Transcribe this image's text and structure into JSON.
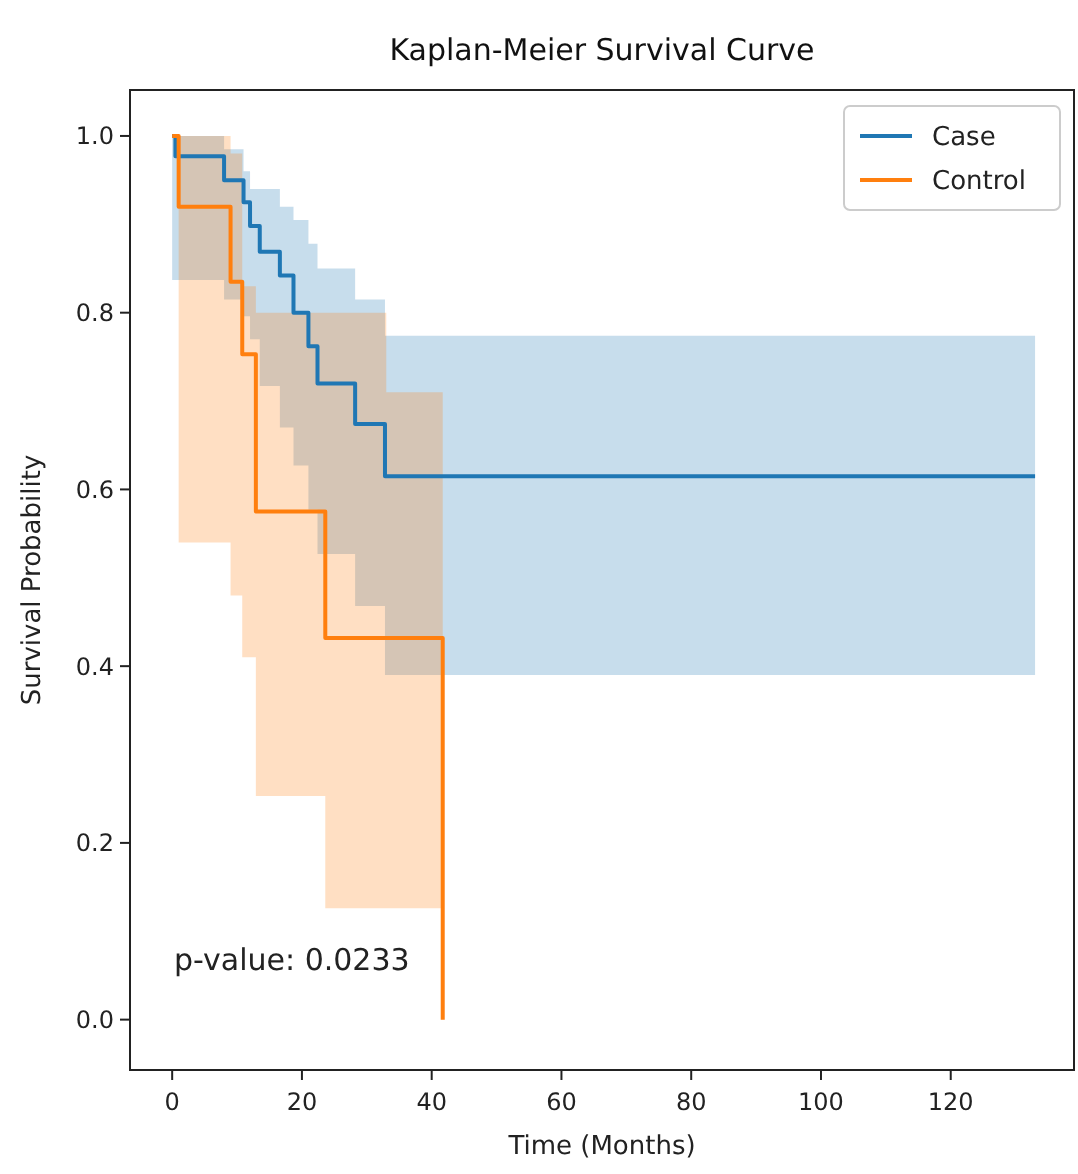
{
  "chart_data": {
    "type": "step",
    "title": "Kaplan-Meier Survival Curve",
    "xlabel": "Time (Months)",
    "ylabel": "Survival Probability",
    "annotations": [
      "p-value: 0.0233"
    ],
    "series": [
      {
        "name": "Case",
        "color": "#1f77b4",
        "x": [
          0,
          0.5,
          8,
          11,
          12,
          13.5,
          16.6,
          18.7,
          21,
          22.4,
          28.2,
          32.8,
          133
        ],
        "values": [
          1.0,
          0.977,
          0.95,
          0.925,
          0.898,
          0.869,
          0.842,
          0.8,
          0.762,
          0.72,
          0.674,
          0.615,
          0.615
        ],
        "upper": [
          1.0,
          1.0,
          0.985,
          0.96,
          0.94,
          0.94,
          0.92,
          0.905,
          0.878,
          0.85,
          0.815,
          0.774,
          0.774
        ],
        "lower": [
          0.837,
          0.837,
          0.815,
          0.796,
          0.77,
          0.717,
          0.67,
          0.627,
          0.577,
          0.527,
          0.468,
          0.39,
          0.39
        ]
      },
      {
        "name": "Control",
        "color": "#ff7f0e",
        "x": [
          0,
          1,
          9,
          10.8,
          12.9,
          23.6,
          33,
          41.7
        ],
        "values": [
          1.0,
          0.92,
          0.835,
          0.753,
          0.575,
          0.432,
          0.432,
          0.0
        ],
        "upper": [
          null,
          1.0,
          0.98,
          0.83,
          0.8,
          0.8,
          0.71,
          0.71
        ],
        "lower": [
          null,
          0.54,
          0.48,
          0.41,
          0.253,
          0.126,
          0.126,
          0.126
        ]
      }
    ],
    "xlim": [
      -6.5,
      139
    ],
    "ylim": [
      -0.057,
      1.052
    ],
    "xticks": [
      0,
      20,
      40,
      60,
      80,
      100,
      120
    ],
    "yticks": [
      {
        "value": 0,
        "label": "0.0"
      },
      {
        "value": 0.2,
        "label": "0.2"
      },
      {
        "value": 0.4,
        "label": "0.4"
      },
      {
        "value": 0.6,
        "label": "0.6"
      },
      {
        "value": 0.8,
        "label": "0.8"
      },
      {
        "value": 1,
        "label": "1.0"
      }
    ],
    "legend": "top right",
    "grid": false
  }
}
